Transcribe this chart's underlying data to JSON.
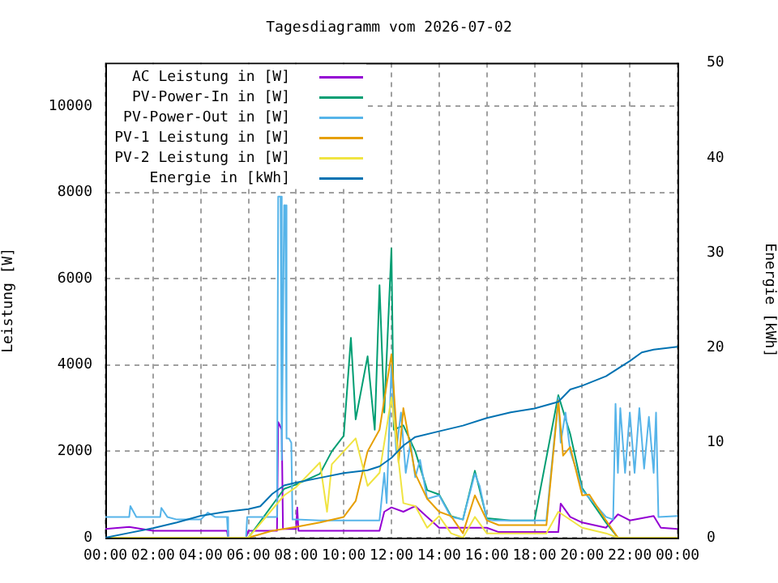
{
  "chart_data": {
    "type": "line",
    "title": "Tagesdiagramm vom 2026-07-02",
    "ylabel": "Leistung [W]",
    "y2label": "Energie [kWh]",
    "xlim": [
      0,
      24
    ],
    "xticks": [
      {
        "value": 0,
        "label": "00:00"
      },
      {
        "value": 2,
        "label": "02:00"
      },
      {
        "value": 4,
        "label": "04:00"
      },
      {
        "value": 6,
        "label": "06:00"
      },
      {
        "value": 8,
        "label": "08:00"
      },
      {
        "value": 10,
        "label": "10:00"
      },
      {
        "value": 12,
        "label": "12:00"
      },
      {
        "value": 14,
        "label": "14:00"
      },
      {
        "value": 16,
        "label": "16:00"
      },
      {
        "value": 18,
        "label": "18:00"
      },
      {
        "value": 20,
        "label": "20:00"
      },
      {
        "value": 22,
        "label": "22:00"
      },
      {
        "value": 24,
        "label": "00:00"
      }
    ],
    "ylim": [
      0,
      11000
    ],
    "yticks": [
      0,
      2000,
      4000,
      6000,
      8000,
      10000
    ],
    "y2lim": [
      0,
      50
    ],
    "y2ticks": [
      0,
      10,
      20,
      30,
      40,
      50
    ],
    "grid": true,
    "legend": "top left",
    "series": [
      {
        "name": "AC Leistung in [W]",
        "color": "#9400d3",
        "x": [
          0,
          1,
          2,
          5.1,
          5.15,
          5.9,
          6,
          7.2,
          7.25,
          7.4,
          7.45,
          8,
          8.05,
          8.1,
          11.5,
          11.7,
          12,
          12.5,
          13,
          13.5,
          14,
          16,
          16.5,
          19,
          19.1,
          19.5,
          20,
          21,
          21.5,
          22,
          23,
          23.3,
          24
        ],
        "values": [
          200,
          250,
          160,
          160,
          0,
          0,
          160,
          160,
          2680,
          2500,
          200,
          200,
          700,
          160,
          160,
          600,
          700,
          600,
          730,
          480,
          230,
          230,
          130,
          130,
          790,
          480,
          350,
          230,
          540,
          400,
          500,
          230,
          200
        ]
      },
      {
        "name": "PV-Power-In in [W]",
        "color": "#009e73",
        "x": [
          0,
          6,
          7.5,
          8,
          9,
          9.5,
          10,
          10.3,
          10.5,
          11,
          11.3,
          11.5,
          11.7,
          12,
          12.1,
          12.5,
          13,
          13.5,
          14,
          14.5,
          15,
          15.5,
          16,
          17,
          18,
          19,
          19.5,
          20,
          21,
          21.5,
          24
        ],
        "values": [
          0,
          0,
          1130,
          1230,
          1480,
          2000,
          2360,
          4630,
          2740,
          4200,
          2500,
          5850,
          2900,
          6700,
          2500,
          2600,
          2000,
          1100,
          1000,
          500,
          420,
          1550,
          450,
          400,
          400,
          3300,
          2400,
          1150,
          350,
          0,
          0
        ]
      },
      {
        "name": "PV-Power-Out in [W]",
        "color": "#56b4e9",
        "x": [
          0,
          1,
          1.05,
          1.3,
          2,
          2.3,
          2.35,
          2.6,
          3,
          4,
          4.3,
          4.35,
          4.6,
          5.1,
          5.15,
          5.9,
          5.95,
          7.2,
          7.25,
          7.35,
          7.4,
          7.5,
          7.55,
          7.6,
          7.7,
          7.8,
          7.85,
          8,
          9,
          10,
          11,
          11.5,
          11.7,
          11.8,
          12,
          12.2,
          12.4,
          12.6,
          12.8,
          13,
          13.2,
          13.5,
          14,
          14.5,
          15,
          15.5,
          15.7,
          16,
          16.3,
          17,
          18,
          18.5,
          19,
          19.1,
          19.3,
          19.5,
          19.8,
          20,
          20.5,
          21,
          21.3,
          21.4,
          21.5,
          21.6,
          21.8,
          22,
          22.2,
          22.4,
          22.6,
          22.8,
          23,
          23.1,
          23.2,
          24
        ],
        "values": [
          480,
          480,
          730,
          480,
          480,
          480,
          690,
          480,
          420,
          420,
          580,
          580,
          480,
          480,
          0,
          0,
          480,
          480,
          7900,
          7900,
          1800,
          7700,
          7700,
          2300,
          2300,
          2200,
          420,
          420,
          400,
          400,
          400,
          400,
          1500,
          800,
          4000,
          2000,
          2900,
          1500,
          2200,
          1400,
          1800,
          900,
          980,
          480,
          420,
          1480,
          1200,
          420,
          400,
          400,
          400,
          400,
          3240,
          2200,
          2900,
          2000,
          1500,
          1100,
          800,
          480,
          420,
          3100,
          1500,
          3000,
          1500,
          2900,
          1500,
          3000,
          1600,
          2800,
          1500,
          2900,
          480,
          500
        ]
      },
      {
        "name": "PV-1 Leistung in [W]",
        "color": "#e69f00",
        "x": [
          0,
          6,
          7,
          8,
          9,
          10,
          10.5,
          11,
          11.5,
          12,
          12.3,
          12.5,
          13,
          13.5,
          14,
          14.5,
          15,
          15.5,
          16,
          16.5,
          18.5,
          19,
          19.2,
          19.5,
          20,
          20.3,
          21,
          21.5,
          24
        ],
        "values": [
          0,
          0,
          160,
          250,
          350,
          480,
          850,
          2000,
          2500,
          4250,
          1740,
          3000,
          1480,
          900,
          600,
          500,
          100,
          980,
          400,
          290,
          290,
          3180,
          1900,
          2100,
          980,
          1000,
          400,
          0,
          0
        ]
      },
      {
        "name": "PV-2 Leistung in [W]",
        "color": "#f0e442",
        "x": [
          0,
          6,
          7.5,
          8,
          9,
          9.3,
          9.5,
          10,
          10.5,
          11,
          11.5,
          12,
          12.5,
          13,
          13.5,
          14,
          14.5,
          15,
          15.5,
          16,
          16.5,
          18.5,
          19,
          20,
          21,
          21.5,
          24
        ],
        "values": [
          0,
          0,
          980,
          1170,
          1740,
          600,
          1700,
          2000,
          2300,
          1200,
          1500,
          3250,
          800,
          730,
          230,
          500,
          100,
          0,
          480,
          100,
          100,
          100,
          600,
          230,
          100,
          0,
          0
        ]
      },
      {
        "name": "Energie in [kWh]",
        "color": "#0072b2",
        "axis": "y2",
        "x": [
          0,
          1,
          2,
          3,
          4,
          5,
          6,
          6.5,
          7,
          7.5,
          8,
          9,
          10,
          11,
          11.5,
          12,
          12.5,
          13,
          14,
          15,
          16,
          17,
          18,
          19,
          19.5,
          20,
          21,
          22,
          22.5,
          23,
          24
        ],
        "values": [
          0,
          0.5,
          1.0,
          1.6,
          2.3,
          2.7,
          3.0,
          3.3,
          4.6,
          5.5,
          5.8,
          6.3,
          6.8,
          7.1,
          7.5,
          8.4,
          9.7,
          10.6,
          11.2,
          11.8,
          12.6,
          13.2,
          13.6,
          14.3,
          15.6,
          16.0,
          17.0,
          18.6,
          19.5,
          19.8,
          20.1
        ]
      }
    ]
  }
}
